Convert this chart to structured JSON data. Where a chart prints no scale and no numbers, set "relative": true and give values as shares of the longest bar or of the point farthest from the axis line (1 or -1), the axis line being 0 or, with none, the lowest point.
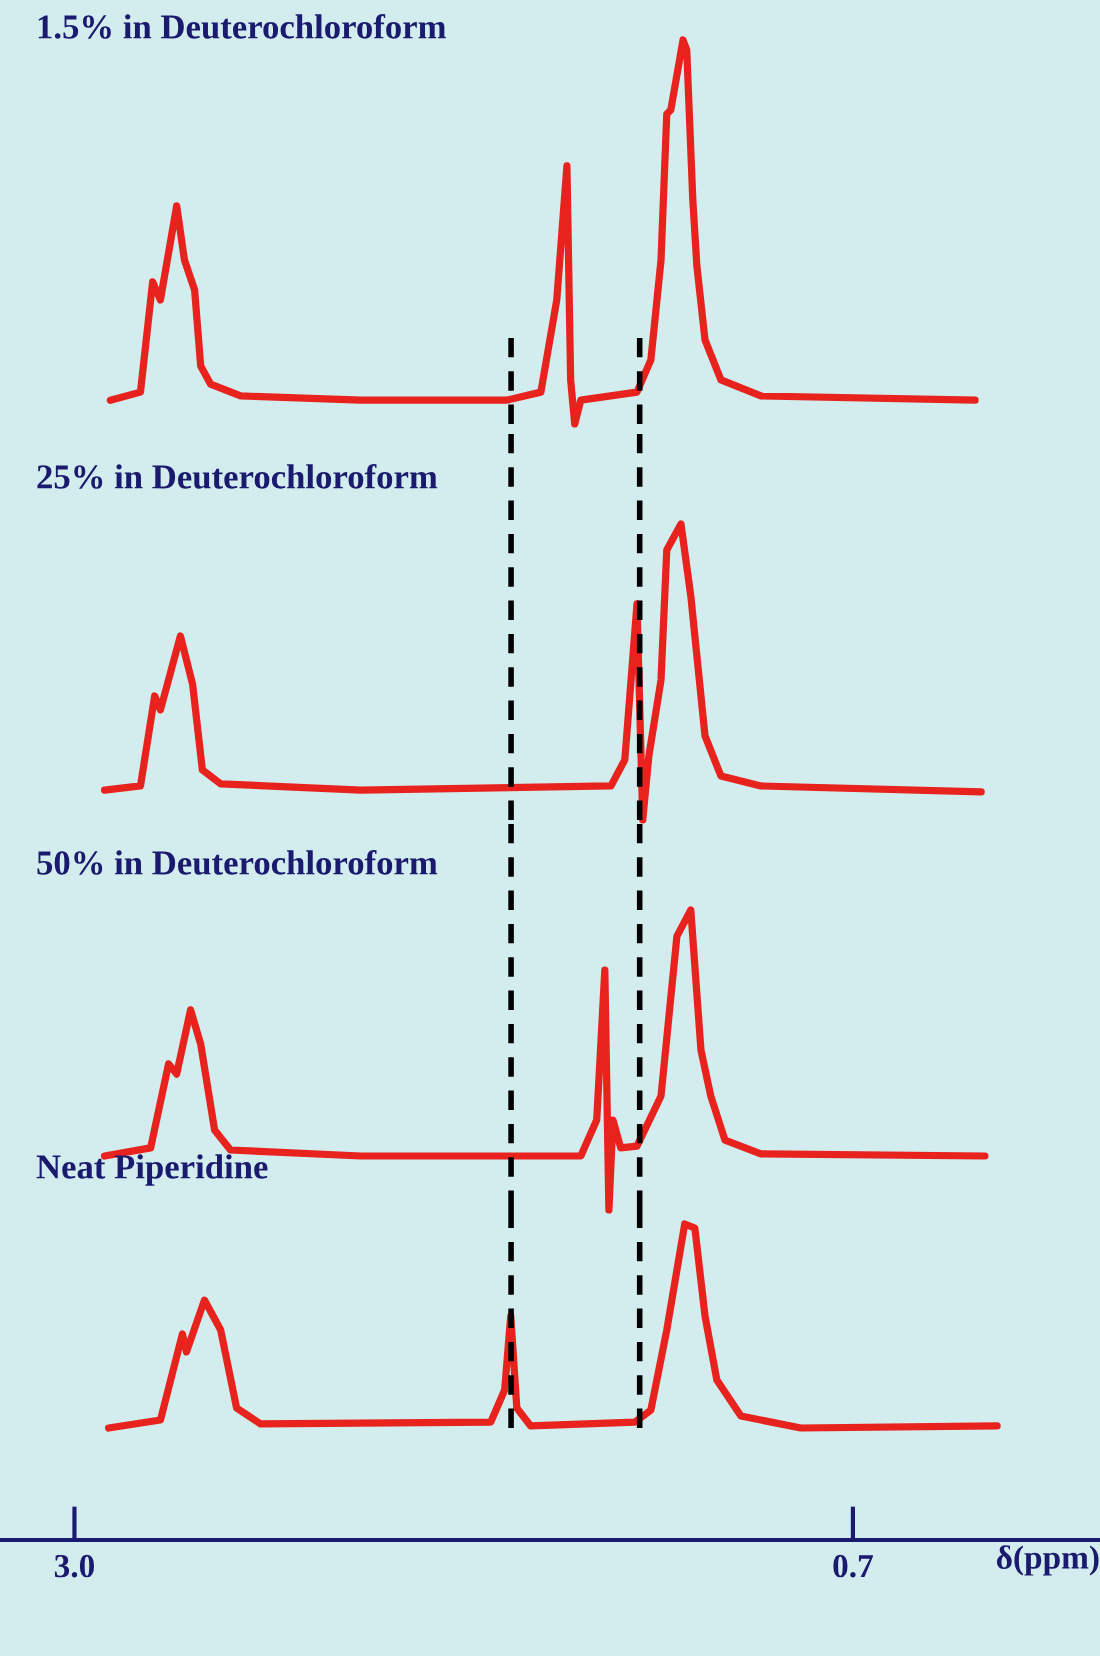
{
  "chart_data": [
    {
      "type": "line",
      "title": "1.5% in Deuterochloroform",
      "relative": true,
      "tick_labels": false,
      "xlim": [
        3.22,
        -0.03
      ],
      "x": [
        2.894,
        2.805,
        2.769,
        2.746,
        2.698,
        2.675,
        2.645,
        2.627,
        2.598,
        2.509,
        2.154,
        1.723,
        1.622,
        1.575,
        1.545,
        1.534,
        1.522,
        1.504,
        1.338,
        1.297,
        1.267,
        1.25,
        1.238,
        1.202,
        1.191,
        1.173,
        1.161,
        1.137,
        1.09,
        0.972,
        0.339
      ],
      "series": [
        {
          "color": "#e8231e",
          "values": [
            0.062,
            0.083,
            0.37,
            0.323,
            0.568,
            0.427,
            0.349,
            0.151,
            0.104,
            0.073,
            0.062,
            0.062,
            0.083,
            0.323,
            0.672,
            0.115,
            0,
            0.062,
            0.083,
            0.167,
            0.427,
            0.807,
            0.818,
            1,
            0.974,
            0.583,
            0.411,
            0.219,
            0.115,
            0.073,
            0.062
          ]
        }
      ],
      "ref_lines": [
        {
          "axis": "x",
          "value": 1.71,
          "color": "#000000",
          "line_style": "dashed"
        },
        {
          "axis": "x",
          "value": 1.33,
          "color": "#000000",
          "line_style": "dashed"
        }
      ]
    },
    {
      "type": "line",
      "title": "25% in Deuterochloroform",
      "relative": true,
      "tick_labels": false,
      "xlim": [
        3.22,
        -0.03
      ],
      "x": [
        2.911,
        2.805,
        2.763,
        2.746,
        2.687,
        2.651,
        2.622,
        2.568,
        2.154,
        1.415,
        1.374,
        1.338,
        1.321,
        1.303,
        1.267,
        1.25,
        1.208,
        1.179,
        1.137,
        1.09,
        0.972,
        0.321
      ],
      "series": [
        {
          "color": "#e8231e",
          "values": [
            0.101,
            0.115,
            0.419,
            0.372,
            0.622,
            0.459,
            0.169,
            0.122,
            0.101,
            0.115,
            0.203,
            0.73,
            0,
            0.216,
            0.473,
            0.912,
            1,
            0.757,
            0.284,
            0.149,
            0.115,
            0.095
          ]
        }
      ],
      "ref_lines": [
        {
          "axis": "x",
          "value": 1.71,
          "color": "#000000",
          "line_style": "dashed"
        },
        {
          "axis": "x",
          "value": 1.33,
          "color": "#000000",
          "line_style": "dashed"
        }
      ]
    },
    {
      "type": "line",
      "title": "50% in Deuterochloroform",
      "relative": true,
      "tick_labels": false,
      "xlim": [
        3.22,
        -0.03
      ],
      "x": [
        2.911,
        2.775,
        2.722,
        2.698,
        2.657,
        2.627,
        2.586,
        2.539,
        2.154,
        1.504,
        1.457,
        1.433,
        1.421,
        1.409,
        1.386,
        1.338,
        1.267,
        1.22,
        1.179,
        1.149,
        1.12,
        1.078,
        0.972,
        0.31
      ],
      "series": [
        {
          "color": "#e8231e",
          "values": [
            0.18,
            0.207,
            0.487,
            0.453,
            0.667,
            0.553,
            0.267,
            0.2,
            0.18,
            0.18,
            0.3,
            0.8,
            0,
            0.3,
            0.207,
            0.213,
            0.38,
            0.913,
            1,
            0.533,
            0.38,
            0.233,
            0.187,
            0.18
          ]
        }
      ],
      "ref_lines": [
        {
          "axis": "x",
          "value": 1.71,
          "color": "#000000",
          "line_style": "dashed"
        },
        {
          "axis": "x",
          "value": 1.33,
          "color": "#000000",
          "line_style": "dashed"
        }
      ]
    },
    {
      "type": "line",
      "title": "Neat Piperidine",
      "relative": true,
      "tick_labels": "x",
      "xlim": [
        3.22,
        -0.03
      ],
      "xticks": [
        {
          "value": 3,
          "label": "3.0"
        },
        0.7
      ],
      "xlabel": "δ(ppm)",
      "x": [
        2.899,
        2.746,
        2.681,
        2.669,
        2.616,
        2.568,
        2.521,
        2.45,
        1.77,
        1.729,
        1.711,
        1.693,
        1.652,
        1.344,
        1.297,
        1.25,
        1.197,
        1.167,
        1.137,
        1.102,
        1.031,
        0.854,
        0.274
      ],
      "series": [
        {
          "color": "#e8231e",
          "values": [
            0,
            0.039,
            0.461,
            0.373,
            0.627,
            0.48,
            0.098,
            0.02,
            0.029,
            0.186,
            0.549,
            0.098,
            0.01,
            0.029,
            0.088,
            0.48,
            1,
            0.98,
            0.549,
            0.235,
            0.059,
            0,
            0.01
          ]
        }
      ],
      "ref_lines": [
        {
          "axis": "x",
          "value": 1.71,
          "color": "#000000",
          "line_style": "dashed"
        },
        {
          "axis": "x",
          "value": 1.33,
          "color": "#000000",
          "line_style": "dashed"
        }
      ]
    }
  ]
}
